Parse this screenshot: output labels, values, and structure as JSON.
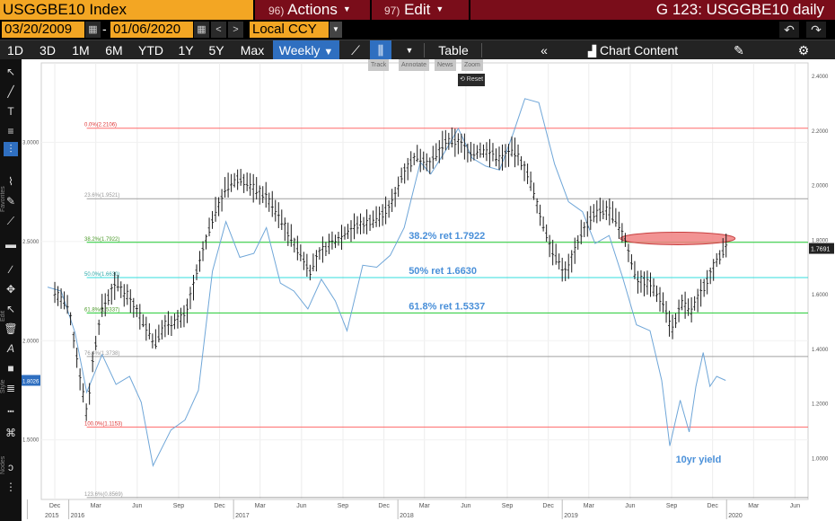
{
  "title_bar": {
    "ticker": "USGGBE10 Index",
    "actions_num": "96)",
    "actions_label": "Actions",
    "edit_num": "97)",
    "edit_label": "Edit",
    "chart_name": "G 123: USGGBE10 daily"
  },
  "date_range": {
    "start": "03/20/2009",
    "end": "01/06/2020",
    "currency": "Local CCY"
  },
  "toolbar": {
    "periods": [
      "1D",
      "3D",
      "1M",
      "6M",
      "YTD",
      "1Y",
      "5Y",
      "Max"
    ],
    "frequency": "Weekly",
    "table_label": "Table",
    "chart_content_label": "Chart Content",
    "track_label": "Track",
    "annotate_label": "Annotate",
    "news_label": "News",
    "zoom_label": "Zoom",
    "reset_label": "Reset"
  },
  "side_labels": {
    "favorites": "Favorites",
    "edit": "Edit",
    "style": "Style",
    "nodes": "Nodes"
  },
  "icons": [
    "cursor-icon",
    "line-draw-icon",
    "text-tool-icon",
    "fibonacci-icon",
    "crosshair-icon",
    "move-icon",
    "trash-icon",
    "chevrons-icon",
    "gear-icon",
    "undo-icon",
    "redo-icon",
    "pencil-icon",
    "calendar-icon"
  ],
  "colors": {
    "breakeven_price": "#d8d8d8",
    "yield_line": "#6fa6d8",
    "fib_0": "#ff6a6a",
    "fib_236": "#a0a0a0",
    "fib_382": "#22cc33",
    "fib_50": "#33dddd",
    "fib_618": "#22cc33",
    "fib_100": "#ff6a6a",
    "highlight": "#f08080",
    "active_button": "#2f6fc0",
    "ticker_bg": "#f3a623",
    "menu_bg": "#7a0d1a"
  },
  "chart_data": {
    "type": "line",
    "title": "",
    "xlabel": "",
    "x_ticks": [
      "Dec",
      "Mar",
      "Jun",
      "Sep",
      "Dec",
      "Mar",
      "Jun",
      "Sep",
      "Dec",
      "Mar",
      "Jun",
      "Sep",
      "Dec",
      "Mar",
      "Jun",
      "Sep",
      "Dec",
      "Mar",
      "Jun"
    ],
    "x_tick_dates": [
      "2015-12-01",
      "2016-03-01",
      "2016-06-01",
      "2016-09-01",
      "2016-12-01",
      "2017-03-01",
      "2017-06-01",
      "2017-09-01",
      "2017-12-01",
      "2018-03-01",
      "2018-06-01",
      "2018-09-01",
      "2018-12-01",
      "2019-03-01",
      "2019-06-01",
      "2019-09-01",
      "2019-12-01",
      "2020-03-01",
      "2020-06-01"
    ],
    "x_years": [
      "2015",
      "2016",
      "2017",
      "2018",
      "2019",
      "2020"
    ],
    "x_year_dates": [
      "2015-10-01",
      "2016-01-01",
      "2017-01-01",
      "2018-01-01",
      "2019-01-01",
      "2020-01-01"
    ],
    "xlim": [
      "2015-11-01",
      "2020-06-30"
    ],
    "left_axis": {
      "ylim": [
        1.2,
        3.4
      ],
      "ticks": [
        "1.5000",
        "2.0000",
        "2.5000",
        "3.0000"
      ]
    },
    "right_axis": {
      "ylim": [
        0.85,
        2.45
      ],
      "ticks": [
        "1.0000",
        "1.2000",
        "1.4000",
        "1.6000",
        "1.8000",
        "2.0000",
        "2.2000",
        "2.4000"
      ]
    },
    "series": [
      {
        "name": "USGGBE10",
        "axis": "right",
        "last_value": "1.7691",
        "points": [
          [
            "2015-12-01",
            1.61
          ],
          [
            "2016-01-01",
            1.55
          ],
          [
            "2016-01-15",
            1.41
          ],
          [
            "2016-02-10",
            1.16
          ],
          [
            "2016-02-25",
            1.38
          ],
          [
            "2016-03-15",
            1.55
          ],
          [
            "2016-04-15",
            1.64
          ],
          [
            "2016-05-15",
            1.59
          ],
          [
            "2016-06-15",
            1.5
          ],
          [
            "2016-07-10",
            1.42
          ],
          [
            "2016-08-01",
            1.49
          ],
          [
            "2016-09-15",
            1.52
          ],
          [
            "2016-10-20",
            1.73
          ],
          [
            "2016-11-15",
            1.88
          ],
          [
            "2016-12-15",
            1.99
          ],
          [
            "2017-01-15",
            2.03
          ],
          [
            "2017-02-15",
            1.99
          ],
          [
            "2017-03-15",
            1.96
          ],
          [
            "2017-04-15",
            1.88
          ],
          [
            "2017-05-15",
            1.79
          ],
          [
            "2017-06-20",
            1.69
          ],
          [
            "2017-07-15",
            1.76
          ],
          [
            "2017-08-15",
            1.8
          ],
          [
            "2017-09-15",
            1.84
          ],
          [
            "2017-10-15",
            1.86
          ],
          [
            "2017-11-15",
            1.88
          ],
          [
            "2017-12-15",
            1.92
          ],
          [
            "2018-01-15",
            2.06
          ],
          [
            "2018-02-15",
            2.11
          ],
          [
            "2018-03-15",
            2.08
          ],
          [
            "2018-04-15",
            2.16
          ],
          [
            "2018-05-15",
            2.16
          ],
          [
            "2018-06-15",
            2.12
          ],
          [
            "2018-07-15",
            2.13
          ],
          [
            "2018-08-15",
            2.1
          ],
          [
            "2018-09-15",
            2.13
          ],
          [
            "2018-10-15",
            2.05
          ],
          [
            "2018-11-15",
            1.88
          ],
          [
            "2018-12-15",
            1.74
          ],
          [
            "2019-01-10",
            1.68
          ],
          [
            "2019-02-10",
            1.82
          ],
          [
            "2019-03-15",
            1.9
          ],
          [
            "2019-04-15",
            1.91
          ],
          [
            "2019-05-15",
            1.83
          ],
          [
            "2019-06-15",
            1.66
          ],
          [
            "2019-07-15",
            1.64
          ],
          [
            "2019-08-15",
            1.57
          ],
          [
            "2019-09-01",
            1.47
          ],
          [
            "2019-09-25",
            1.57
          ],
          [
            "2019-10-15",
            1.54
          ],
          [
            "2019-11-15",
            1.64
          ],
          [
            "2019-12-10",
            1.73
          ],
          [
            "2019-12-31",
            1.77
          ]
        ]
      },
      {
        "name": "10yr yield",
        "axis": "left",
        "last_value": "1.8026",
        "points": [
          [
            "2015-11-15",
            2.27
          ],
          [
            "2015-12-15",
            2.25
          ],
          [
            "2016-01-15",
            2.04
          ],
          [
            "2016-02-10",
            1.74
          ],
          [
            "2016-03-15",
            1.93
          ],
          [
            "2016-04-15",
            1.78
          ],
          [
            "2016-05-15",
            1.82
          ],
          [
            "2016-06-10",
            1.69
          ],
          [
            "2016-07-06",
            1.37
          ],
          [
            "2016-08-15",
            1.55
          ],
          [
            "2016-09-15",
            1.6
          ],
          [
            "2016-10-15",
            1.75
          ],
          [
            "2016-11-15",
            2.35
          ],
          [
            "2016-12-15",
            2.6
          ],
          [
            "2017-01-15",
            2.42
          ],
          [
            "2017-02-15",
            2.44
          ],
          [
            "2017-03-15",
            2.57
          ],
          [
            "2017-04-15",
            2.29
          ],
          [
            "2017-05-15",
            2.25
          ],
          [
            "2017-06-15",
            2.16
          ],
          [
            "2017-07-15",
            2.31
          ],
          [
            "2017-08-15",
            2.2
          ],
          [
            "2017-09-10",
            2.05
          ],
          [
            "2017-10-15",
            2.38
          ],
          [
            "2017-11-15",
            2.37
          ],
          [
            "2017-12-15",
            2.43
          ],
          [
            "2018-01-15",
            2.57
          ],
          [
            "2018-02-20",
            2.9
          ],
          [
            "2018-03-15",
            2.84
          ],
          [
            "2018-04-15",
            2.95
          ],
          [
            "2018-05-15",
            3.07
          ],
          [
            "2018-06-15",
            2.92
          ],
          [
            "2018-07-15",
            2.88
          ],
          [
            "2018-08-15",
            2.86
          ],
          [
            "2018-09-15",
            3.05
          ],
          [
            "2018-10-10",
            3.22
          ],
          [
            "2018-11-10",
            3.2
          ],
          [
            "2018-12-15",
            2.89
          ],
          [
            "2019-01-15",
            2.7
          ],
          [
            "2019-02-15",
            2.65
          ],
          [
            "2019-03-15",
            2.49
          ],
          [
            "2019-04-15",
            2.53
          ],
          [
            "2019-05-15",
            2.32
          ],
          [
            "2019-06-15",
            2.08
          ],
          [
            "2019-07-15",
            2.05
          ],
          [
            "2019-08-10",
            1.8
          ],
          [
            "2019-08-28",
            1.47
          ],
          [
            "2019-09-20",
            1.7
          ],
          [
            "2019-10-10",
            1.54
          ],
          [
            "2019-10-25",
            1.77
          ],
          [
            "2019-11-10",
            1.94
          ],
          [
            "2019-11-25",
            1.77
          ],
          [
            "2019-12-10",
            1.82
          ],
          [
            "2019-12-30",
            1.8
          ]
        ]
      }
    ],
    "fib_levels": [
      {
        "label": "0.0%(2.2106)",
        "value": 2.2106,
        "color": "#ff6a6a"
      },
      {
        "label": "23.6%(1.9521)",
        "value": 1.9521,
        "color": "#a0a0a0"
      },
      {
        "label": "38.2%(1.7922)",
        "value": 1.7922,
        "color": "#22cc33"
      },
      {
        "label": "50.0%(1.6630)",
        "value": 1.663,
        "color": "#33dddd"
      },
      {
        "label": "61.8%(1.5337)",
        "value": 1.5337,
        "color": "#22cc33"
      },
      {
        "label": "76.4%(1.3738)",
        "value": 1.3738,
        "color": "#a0a0a0"
      },
      {
        "label": "100.0%(1.1153)",
        "value": 1.1153,
        "color": "#ff6a6a"
      },
      {
        "label": "123.6%(0.8569)",
        "value": 0.8569,
        "color": "#a0a0a0"
      }
    ],
    "annotations": [
      {
        "text": "38.2% ret 1.7922",
        "value": 1.7922,
        "color": "#4a90d9"
      },
      {
        "text": "50% ret 1.6630",
        "value": 1.663,
        "color": "#4a90d9"
      },
      {
        "text": "61.8% ret 1.5337",
        "value": 1.5337,
        "color": "#4a90d9"
      },
      {
        "text": "10yr yield",
        "color": "#4a90d9"
      }
    ],
    "highlight_zone": {
      "from": "2019-05-10",
      "to": "2020-01-20",
      "value": 1.8
    }
  }
}
